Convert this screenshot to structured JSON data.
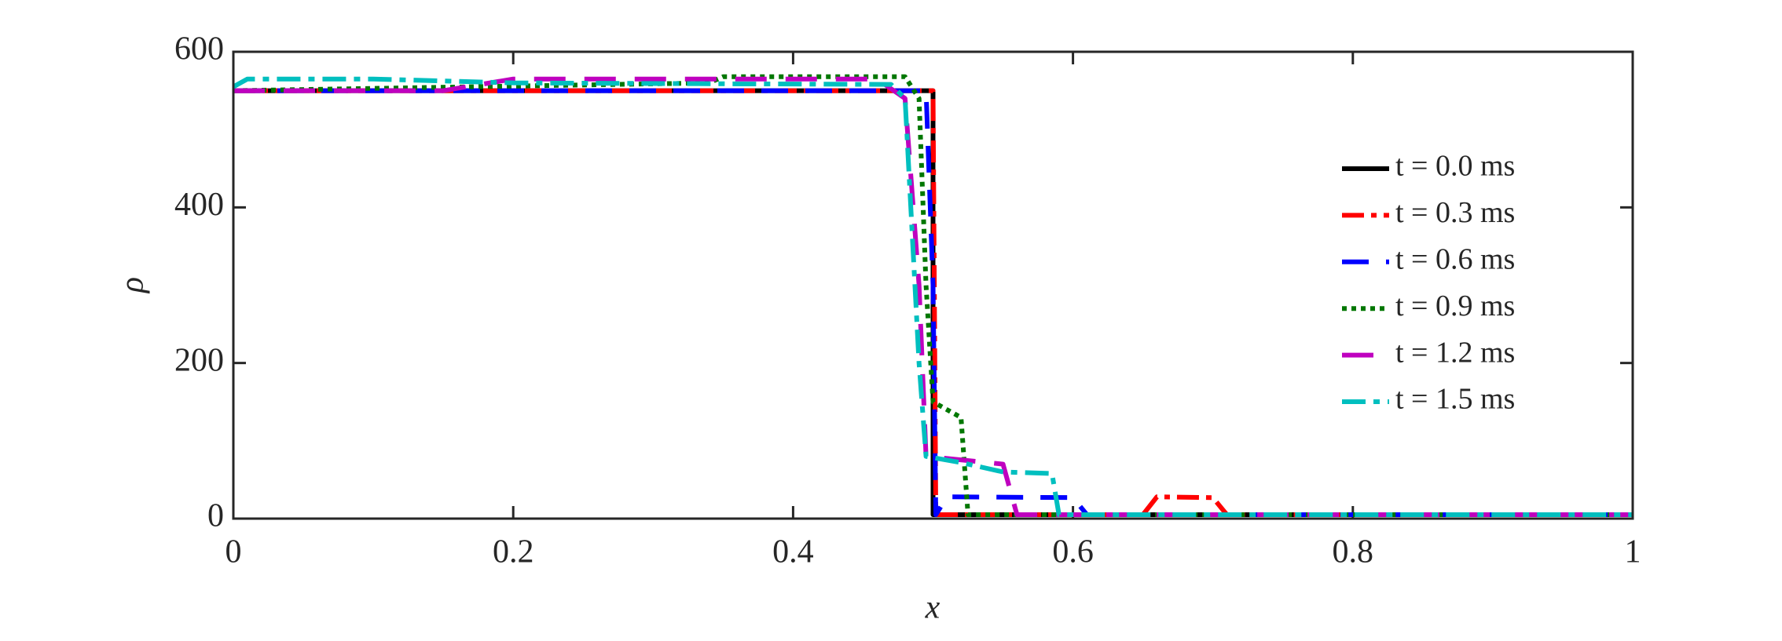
{
  "chart_data": {
    "type": "line",
    "xlabel": "x",
    "ylabel": "ρ",
    "xlim": [
      0,
      1
    ],
    "ylim": [
      0,
      600
    ],
    "xticks": [
      0,
      0.2,
      0.4,
      0.6,
      0.8,
      1
    ],
    "yticks": [
      0,
      200,
      400,
      600
    ],
    "legend": "right",
    "series": [
      {
        "name": "t = 0.0 ms",
        "color": "#000000",
        "dash": "none",
        "x": [
          0,
          0.5,
          0.5,
          1
        ],
        "values": [
          550,
          550,
          5,
          5
        ]
      },
      {
        "name": "t = 0.3 ms",
        "color": "#ff0000",
        "dash": "28 9 7 9",
        "x": [
          0,
          0.5,
          0.502,
          0.65,
          0.66,
          0.7,
          0.71,
          1
        ],
        "values": [
          550,
          550,
          5,
          5,
          28,
          27,
          5,
          5
        ]
      },
      {
        "name": "t = 0.6 ms",
        "color": "#0000ff",
        "dash": "34 22",
        "x": [
          0,
          0.495,
          0.5,
          0.502,
          0.51,
          0.6,
          0.61,
          1
        ],
        "values": [
          550,
          550,
          300,
          5,
          28,
          27,
          5,
          5
        ]
      },
      {
        "name": "t = 0.9 ms",
        "color": "#007700",
        "dash": "6 6",
        "x": [
          0,
          0.34,
          0.35,
          0.48,
          0.49,
          0.495,
          0.5,
          0.52,
          0.525,
          1
        ],
        "values": [
          550,
          560,
          568,
          568,
          540,
          300,
          150,
          130,
          5,
          5
        ]
      },
      {
        "name": "t = 1.2 ms",
        "color": "#bf00bf",
        "dash": "40 24",
        "x": [
          0,
          0.15,
          0.2,
          0.46,
          0.48,
          0.49,
          0.495,
          0.55,
          0.56,
          1
        ],
        "values": [
          550,
          550,
          565,
          565,
          540,
          300,
          80,
          70,
          5,
          5
        ]
      },
      {
        "name": "t = 1.5 ms",
        "color": "#00bfbf",
        "dash": "30 10 8 10",
        "x": [
          0,
          0.01,
          0.1,
          0.2,
          0.47,
          0.48,
          0.49,
          0.495,
          0.52,
          0.55,
          0.585,
          0.59,
          1
        ],
        "values": [
          555,
          565,
          565,
          560,
          558,
          540,
          200,
          80,
          72,
          60,
          58,
          5,
          5
        ]
      }
    ]
  }
}
